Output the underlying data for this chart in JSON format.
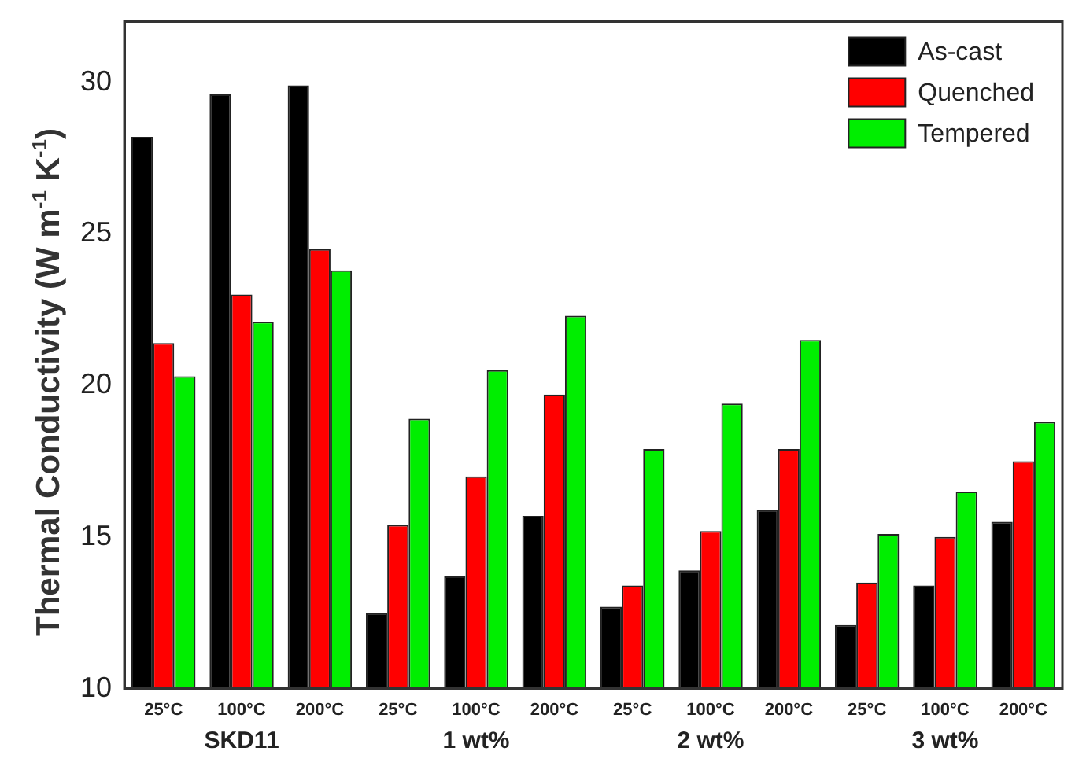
{
  "chart_data": {
    "type": "bar",
    "ylabel": "Thermal Conductivity (W m$^{-1}$ K$^{-1}$)",
    "categories": [
      "25°C",
      "100°C",
      "200°C",
      "25°C",
      "100°C",
      "200°C",
      "25°C",
      "100°C",
      "200°C",
      "25°C",
      "100°C",
      "200°C"
    ],
    "series": [
      {
        "name": "As-cast",
        "color": "#000000",
        "values": [
          28.2,
          29.6,
          29.9,
          12.5,
          13.7,
          15.7,
          12.7,
          13.9,
          15.9,
          12.1,
          13.4,
          15.5
        ]
      },
      {
        "name": "Quenched",
        "color": "#ff0000",
        "values": [
          21.4,
          23.0,
          24.5,
          15.4,
          17.0,
          19.7,
          13.4,
          15.2,
          17.9,
          13.5,
          15.0,
          17.5
        ]
      },
      {
        "name": "Tempered",
        "color": "#00ee00",
        "values": [
          20.3,
          22.1,
          23.8,
          18.9,
          20.5,
          22.3,
          17.9,
          19.4,
          21.5,
          15.1,
          16.5,
          18.8
        ]
      }
    ],
    "annotations": [
      "SKD11",
      "1 wt%",
      "2 wt%",
      "3 wt%"
    ],
    "ylim": [
      10,
      32
    ],
    "yticks": [
      10,
      15,
      20,
      25,
      30
    ],
    "grid": false,
    "legend": "top right"
  }
}
